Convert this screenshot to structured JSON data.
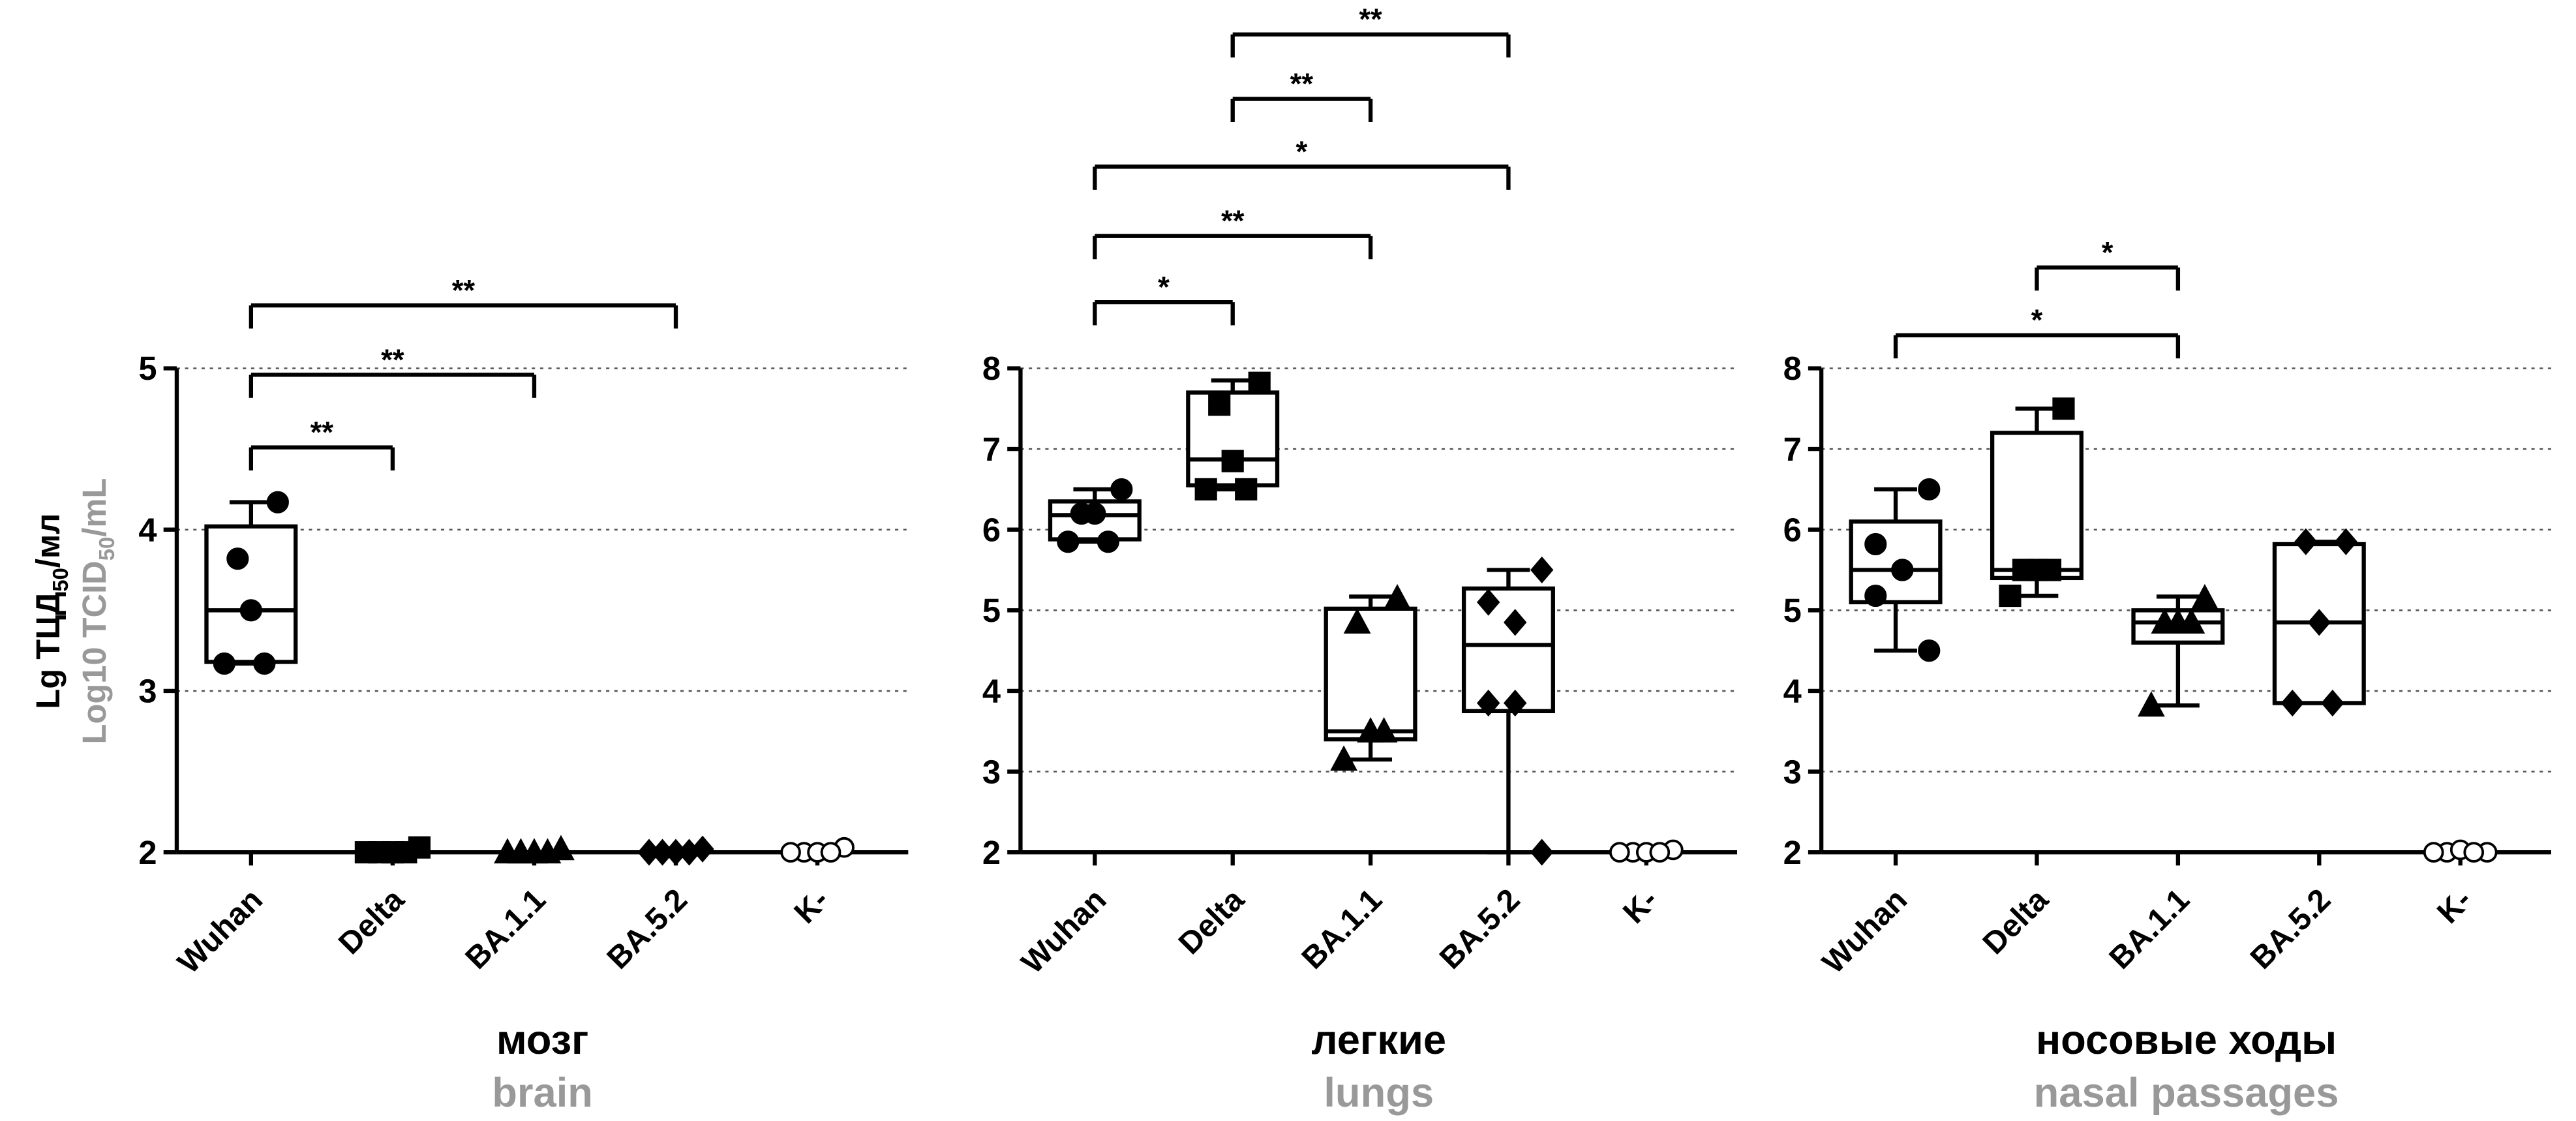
{
  "chart_data": [
    {
      "type": "box",
      "title": "мозг",
      "subtitle": "brain",
      "ylabel": {
        "main": "Lg ТЦД",
        "main_sub": "50",
        "main_end": "/мл",
        "alt": "Log10 TCID",
        "alt_sub": "50",
        "alt_end": "/mL"
      },
      "categories": [
        "Wuhan",
        "Delta",
        "BA.1.1",
        "BA.5.2",
        "K-"
      ],
      "markers": [
        "circle",
        "square",
        "triangle",
        "diamond",
        "open-circle"
      ],
      "points": [
        [
          4.17,
          3.82,
          3.5,
          3.17,
          3.17
        ],
        [
          2.03,
          2,
          2,
          2,
          2
        ],
        [
          2.02,
          2,
          2,
          2,
          2
        ],
        [
          2.02,
          2,
          2,
          2,
          2
        ],
        [
          2.03,
          2,
          2,
          2,
          2
        ]
      ],
      "boxes": [
        {
          "min": 3.17,
          "q1": 3.18,
          "median": 3.5,
          "q3": 4.02,
          "max": 4.17
        },
        null,
        null,
        null,
        null
      ],
      "brackets": [
        {
          "from": 0,
          "to": 1,
          "label": "**",
          "level": 4.51
        },
        {
          "from": 0,
          "to": 2,
          "label": "**",
          "level": 4.96
        },
        {
          "from": 0,
          "to": 3,
          "label": "**",
          "level": 5.39
        }
      ],
      "ylim": [
        2,
        5
      ],
      "yticks": [
        2,
        3,
        4,
        5
      ],
      "grid": true
    },
    {
      "type": "box",
      "title": "легкие",
      "subtitle": "lungs",
      "categories": [
        "Wuhan",
        "Delta",
        "BA.1.1",
        "BA.5.2",
        "K-"
      ],
      "markers": [
        "circle",
        "square",
        "triangle",
        "diamond",
        "open-circle"
      ],
      "points": [
        [
          6.5,
          6.2,
          6.2,
          5.85,
          5.85
        ],
        [
          7.82,
          7.55,
          6.85,
          6.5,
          6.5
        ],
        [
          5.15,
          4.85,
          3.5,
          3.5,
          3.15
        ],
        [
          5.5,
          5.1,
          4.85,
          3.85,
          3.85,
          2.0
        ],
        [
          2.03,
          2,
          2,
          2,
          2
        ]
      ],
      "boxes": [
        {
          "min": 5.85,
          "q1": 5.88,
          "median": 6.18,
          "q3": 6.35,
          "max": 6.5
        },
        {
          "min": 6.5,
          "q1": 6.55,
          "median": 6.87,
          "q3": 7.7,
          "max": 7.85
        },
        {
          "min": 3.15,
          "q1": 3.4,
          "median": 3.5,
          "q3": 5.02,
          "max": 5.17
        },
        {
          "min": 2.0,
          "q1": 3.75,
          "median": 4.57,
          "q3": 5.27,
          "max": 5.5
        },
        null
      ],
      "brackets": [
        {
          "from": 0,
          "to": 1,
          "label": "*",
          "level": 8.82
        },
        {
          "from": 0,
          "to": 2,
          "label": "**",
          "level": 9.64
        },
        {
          "from": 0,
          "to": 3,
          "label": "*",
          "level": 10.5
        },
        {
          "from": 1,
          "to": 2,
          "label": "**",
          "level": 11.34
        },
        {
          "from": 1,
          "to": 3,
          "label": "**",
          "level": 12.14
        }
      ],
      "ylim": [
        2,
        8
      ],
      "yticks": [
        2,
        3,
        4,
        5,
        6,
        7,
        8
      ],
      "grid": true
    },
    {
      "type": "box",
      "title": "носовые ходы",
      "subtitle": "nasal passages",
      "categories": [
        "Wuhan",
        "Delta",
        "BA.1.1",
        "BA.5.2",
        "K-"
      ],
      "markers": [
        "circle",
        "square",
        "triangle",
        "diamond",
        "open-circle"
      ],
      "points": [
        [
          6.5,
          5.82,
          5.5,
          5.5,
          5.18,
          4.5
        ],
        [
          7.5,
          5.5,
          5.5,
          5.5,
          5.18
        ],
        [
          5.15,
          4.85,
          4.85,
          4.85,
          3.82
        ],
        [
          5.85,
          5.85,
          4.85,
          3.85,
          3.85
        ],
        [
          2,
          2,
          2.03,
          2,
          2
        ]
      ],
      "boxes": [
        {
          "min": 4.5,
          "q1": 5.1,
          "median": 5.5,
          "q3": 6.1,
          "max": 6.5
        },
        {
          "min": 5.18,
          "q1": 5.4,
          "median": 5.5,
          "q3": 7.2,
          "max": 7.5
        },
        {
          "min": 3.82,
          "q1": 4.6,
          "median": 4.85,
          "q3": 5.0,
          "max": 5.17
        },
        {
          "min": 3.85,
          "q1": 3.85,
          "median": 4.85,
          "q3": 5.82,
          "max": 5.85
        },
        null
      ],
      "brackets": [
        {
          "from": 0,
          "to": 2,
          "label": "*",
          "level": 8.41
        },
        {
          "from": 1,
          "to": 2,
          "label": "*",
          "level": 9.25
        }
      ],
      "ylim": [
        2,
        8
      ],
      "yticks": [
        2,
        3,
        4,
        5,
        6,
        7,
        8
      ],
      "grid": true
    }
  ]
}
